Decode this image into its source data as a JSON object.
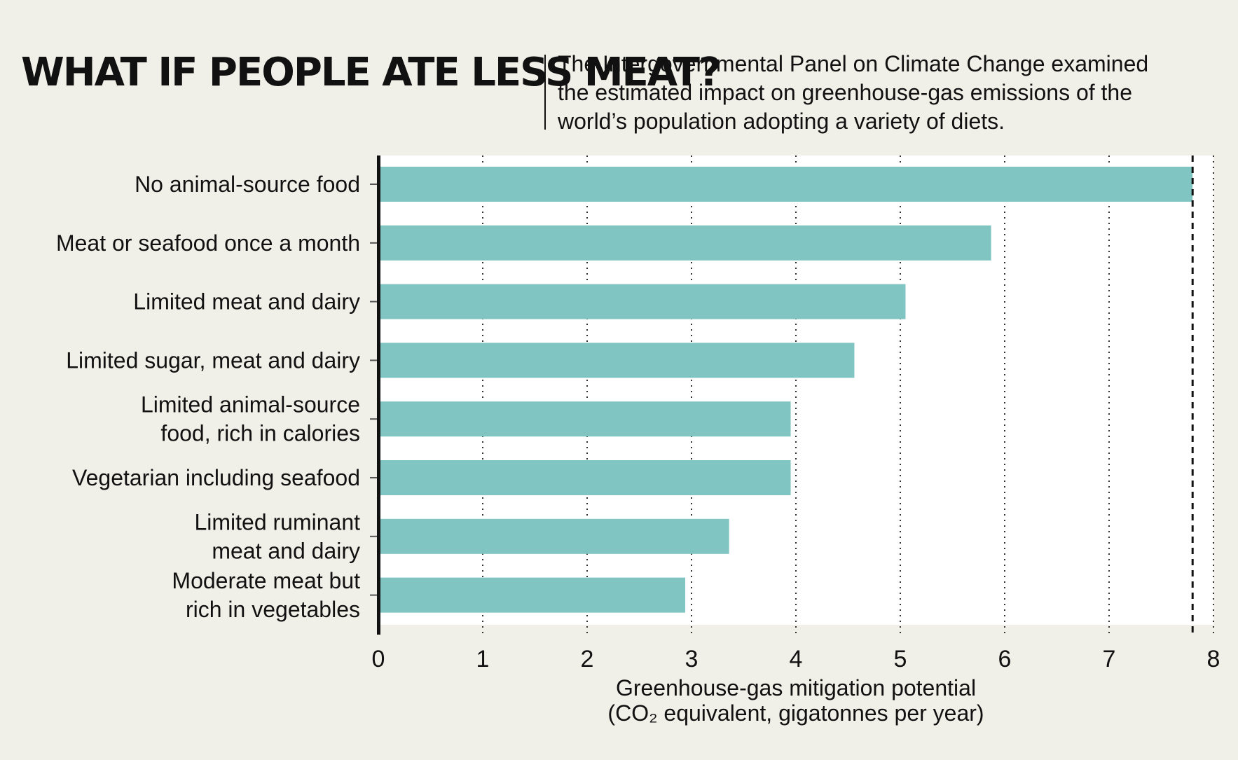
{
  "colors": {
    "background": "#f1f0e8",
    "plot_area": "#ffffff",
    "bar": "#80c5c1",
    "text": "#111111"
  },
  "chart_data": {
    "type": "bar",
    "orientation": "horizontal",
    "title": "WHAT IF PEOPLE ATE LESS MEAT?",
    "subtitle_lines": [
      "The Intergovernmental Panel on Climate Change examined",
      "the estimated impact on greenhouse-gas emissions of the",
      "world’s population adopting a variety of diets."
    ],
    "categories": [
      [
        "No animal-source food"
      ],
      [
        "Meat or seafood once a month"
      ],
      [
        "Limited meat and dairy"
      ],
      [
        "Limited sugar, meat and dairy"
      ],
      [
        "Limited animal-source",
        "food, rich in calories"
      ],
      [
        "Vegetarian including seafood"
      ],
      [
        "Limited ruminant",
        "meat and dairy"
      ],
      [
        "Moderate meat but",
        "rich in vegetables"
      ]
    ],
    "values": [
      7.8,
      5.87,
      5.05,
      4.56,
      3.95,
      3.95,
      3.36,
      2.94
    ],
    "xlim": [
      0,
      8
    ],
    "x_ticks": [
      "0",
      "1",
      "2",
      "3",
      "4",
      "5",
      "6",
      "7",
      "8"
    ],
    "xlabel_lines": [
      "Greenhouse-gas mitigation potential",
      "(CO₂ equivalent, gigatonnes per year)"
    ],
    "grid": "vertical dotted",
    "reference_line_value": 7.8
  }
}
